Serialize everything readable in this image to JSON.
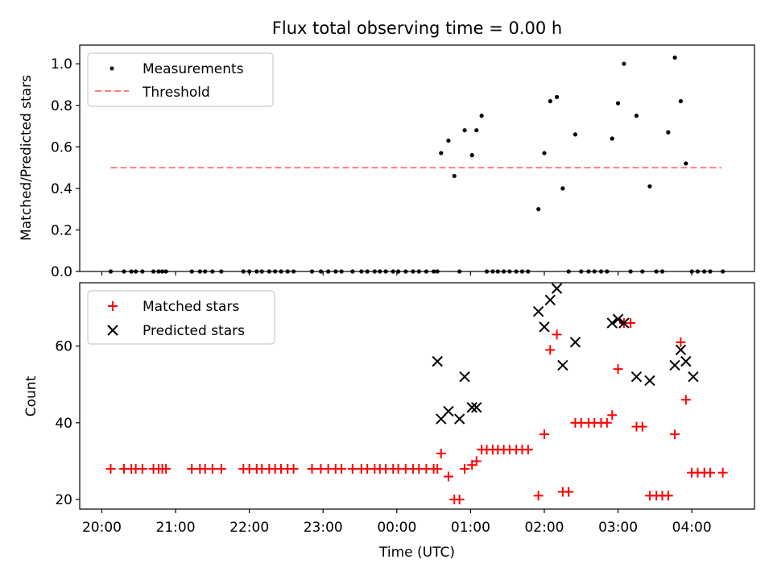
{
  "title": "Flux total observing time = 0.00 h",
  "x_tick_labels": [
    "20:00",
    "21:00",
    "22:00",
    "23:00",
    "00:00",
    "01:00",
    "02:00",
    "03:00",
    "04:00"
  ],
  "xlabel": "Time (UTC)",
  "colors": {
    "measurement": "#000000",
    "threshold": "#ff7f7f",
    "matched": "#ff0000",
    "predicted": "#000000"
  },
  "chart_data": [
    {
      "type": "scatter",
      "ylabel": "Matched/Predicted stars",
      "xlim": [
        -0.3,
        8.85
      ],
      "ylim": [
        0,
        1.09
      ],
      "y_ticks": [
        "0.0",
        "0.2",
        "0.4",
        "0.6",
        "0.8",
        "1.0"
      ],
      "legend_position": "upper-left",
      "grid": false,
      "series": [
        {
          "name": "Measurements",
          "marker": "dot",
          "x": [
            0.12,
            0.3,
            0.4,
            0.46,
            0.55,
            0.7,
            0.77,
            0.82,
            0.87,
            1.22,
            1.33,
            1.4,
            1.5,
            1.62,
            1.92,
            2.0,
            2.1,
            2.17,
            2.27,
            2.35,
            2.43,
            2.52,
            2.6,
            2.85,
            2.97,
            3.07,
            3.17,
            3.25,
            3.4,
            3.52,
            3.6,
            3.7,
            3.77,
            3.85,
            3.95,
            4.02,
            4.12,
            4.22,
            4.3,
            4.4,
            4.5,
            4.55,
            4.6,
            4.7,
            4.78,
            4.85,
            4.92,
            5.02,
            5.08,
            5.15,
            5.22,
            5.3,
            5.37,
            5.45,
            5.53,
            5.62,
            5.7,
            5.78,
            5.92,
            6.0,
            6.08,
            6.17,
            6.25,
            6.33,
            6.42,
            6.5,
            6.6,
            6.68,
            6.77,
            6.85,
            6.92,
            7.0,
            7.08,
            7.17,
            7.25,
            7.33,
            7.43,
            7.52,
            7.6,
            7.68,
            7.77,
            7.85,
            7.92,
            8.0,
            8.08,
            8.17,
            8.25,
            8.42
          ],
          "y": [
            0,
            0,
            0,
            0,
            0,
            0,
            0,
            0,
            0,
            0,
            0,
            0,
            0,
            0,
            0,
            0,
            0,
            0,
            0,
            0,
            0,
            0,
            0,
            0,
            0,
            0,
            0,
            0,
            0,
            0,
            0,
            0,
            0,
            0,
            0,
            0,
            0,
            0,
            0,
            0,
            0,
            0,
            0.57,
            0.63,
            0.46,
            0,
            0.68,
            0.56,
            0.68,
            0.75,
            0,
            0,
            0,
            0,
            0,
            0,
            0,
            0,
            0.3,
            0.57,
            0.82,
            0.84,
            0.4,
            0,
            0.66,
            0,
            0,
            0,
            0,
            0,
            0.64,
            0.81,
            1.0,
            0,
            0.75,
            0,
            0.41,
            0,
            0,
            0.67,
            1.03,
            0.82,
            0.52,
            0,
            0,
            0,
            0,
            0
          ]
        },
        {
          "name": "Threshold",
          "marker": "dashed-line",
          "x": [
            0.12,
            8.4
          ],
          "y": [
            0.5,
            0.5
          ]
        }
      ]
    },
    {
      "type": "scatter",
      "ylabel": "Count",
      "xlim": [
        -0.3,
        8.85
      ],
      "ylim": [
        17.5,
        76.5
      ],
      "y_ticks": [
        "20",
        "40",
        "60"
      ],
      "legend_position": "upper-left",
      "grid": false,
      "series": [
        {
          "name": "Matched stars",
          "marker": "plus",
          "x": [
            0.12,
            0.3,
            0.4,
            0.46,
            0.55,
            0.7,
            0.77,
            0.82,
            0.87,
            1.22,
            1.33,
            1.4,
            1.5,
            1.62,
            1.92,
            2.0,
            2.1,
            2.17,
            2.27,
            2.35,
            2.43,
            2.52,
            2.6,
            2.85,
            2.97,
            3.07,
            3.17,
            3.25,
            3.4,
            3.52,
            3.6,
            3.7,
            3.77,
            3.85,
            3.95,
            4.02,
            4.12,
            4.22,
            4.3,
            4.4,
            4.5,
            4.55,
            4.6,
            4.7,
            4.78,
            4.85,
            4.92,
            5.02,
            5.08,
            5.15,
            5.22,
            5.3,
            5.37,
            5.45,
            5.53,
            5.62,
            5.7,
            5.78,
            5.92,
            6.0,
            6.08,
            6.17,
            6.25,
            6.33,
            6.42,
            6.5,
            6.6,
            6.68,
            6.77,
            6.85,
            6.92,
            7.0,
            7.08,
            7.17,
            7.25,
            7.33,
            7.43,
            7.52,
            7.6,
            7.68,
            7.77,
            7.85,
            7.92,
            8.0,
            8.08,
            8.17,
            8.25,
            8.42
          ],
          "y": [
            28,
            28,
            28,
            28,
            28,
            28,
            28,
            28,
            28,
            28,
            28,
            28,
            28,
            28,
            28,
            28,
            28,
            28,
            28,
            28,
            28,
            28,
            28,
            28,
            28,
            28,
            28,
            28,
            28,
            28,
            28,
            28,
            28,
            28,
            28,
            28,
            28,
            28,
            28,
            28,
            28,
            28,
            32,
            26,
            20,
            20,
            28,
            29,
            30,
            33,
            33,
            33,
            33,
            33,
            33,
            33,
            33,
            33,
            21,
            37,
            59,
            63,
            22,
            22,
            40,
            40,
            40,
            40,
            40,
            40,
            42,
            54,
            66,
            66,
            39,
            39,
            21,
            21,
            21,
            21,
            37,
            61,
            46,
            27,
            27,
            27,
            27,
            27
          ]
        },
        {
          "name": "Predicted stars",
          "marker": "x",
          "x": [
            4.55,
            4.6,
            4.7,
            4.85,
            4.92,
            5.02,
            5.08,
            5.92,
            6.0,
            6.08,
            6.17,
            6.25,
            6.42,
            6.92,
            7.0,
            7.08,
            7.25,
            7.43,
            7.77,
            7.85,
            7.92,
            8.02
          ],
          "y": [
            56,
            41,
            43,
            41,
            52,
            44,
            44,
            69,
            65,
            72,
            75,
            55,
            61,
            66,
            67,
            66,
            52,
            51,
            55,
            59,
            56,
            52
          ]
        }
      ]
    }
  ]
}
